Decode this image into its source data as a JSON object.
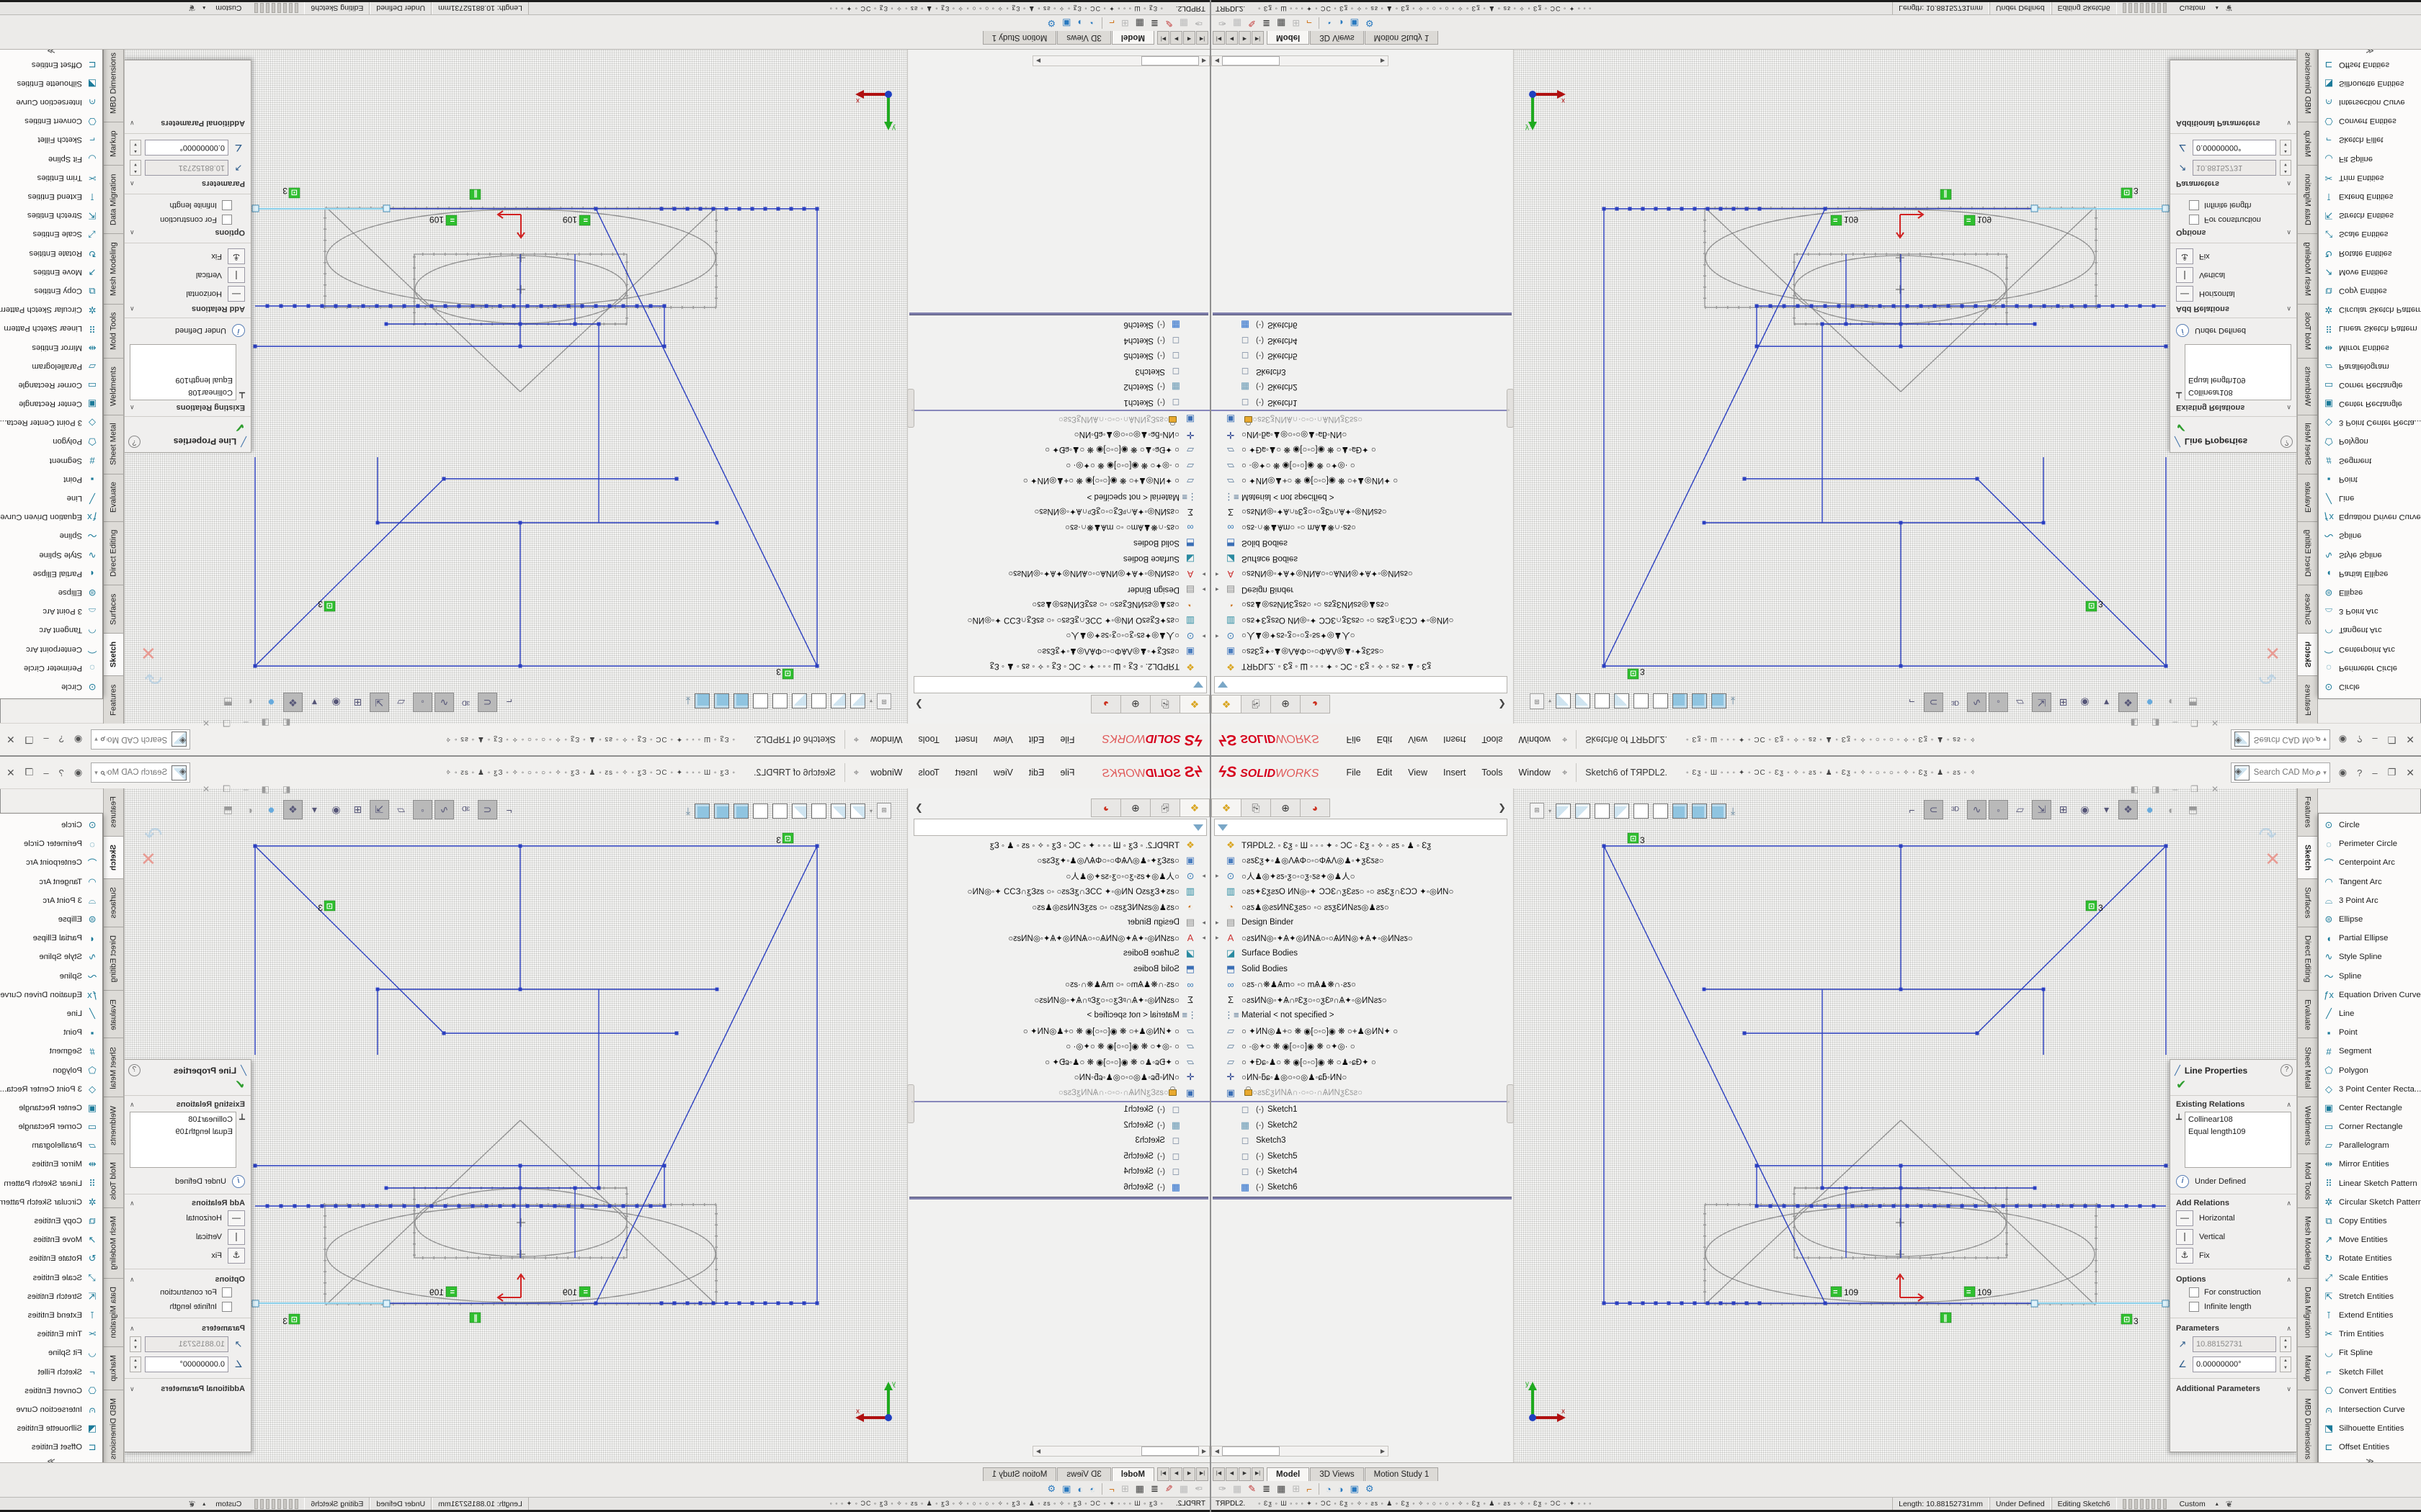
{
  "window": {
    "logo_ds": "ϟS",
    "logo_solid": "SOLID",
    "logo_works": "WORKS",
    "menus": [
      "File",
      "Edit",
      "View",
      "Insert",
      "Tools",
      "Window"
    ],
    "pin_icon": "⌖",
    "doc_title": "Sketch6 of TЯPDL2.",
    "qat_glyphs": "◦ Ɛƺ ◦ Ш ◦ ◦ ◦ ✦ ◦ ƆC ◦ Ɛƺ ◦ ✧ ◦ ƨƽ ◦ ♟ ◦ Ɛƺ ◦ ✧ ◦ ○ ◦ ○ ◦ ✧ ◦ Ɛƺ ◦ ♟ ◦ ƨƽ ◦ ✧ ◦ Ɛƺ ◦ ƆC ◦ ✦ ◦ ◦ ◦ …",
    "search_placeholder": "Search CAD Models",
    "search_cube_icon": "◈",
    "search_mag_icon": "⌕",
    "account_icon": "◉",
    "help_label": "?",
    "minimize_label": "–",
    "restore_label": "❐",
    "close_label": "✕"
  },
  "feature_manager": {
    "tabs": [
      {
        "name": "featuremanager-tab",
        "glyph": "❖",
        "color": "#d9a520"
      },
      {
        "name": "propertymanager-tab",
        "glyph": "⎘",
        "color": "#555555"
      },
      {
        "name": "configurationmanager-tab",
        "glyph": "⊕",
        "color": "#333333"
      },
      {
        "name": "displaymanager-tab",
        "glyph": "◕",
        "color": "#cc3322"
      }
    ],
    "chevron": "❯",
    "items": [
      {
        "icon": "part-icon",
        "glyph": "❖",
        "color": "#d9a520",
        "label": "TЯPDL2.",
        "suffix": "  ◦ Ɛƺ ◦ Ш ◦ ◦ ◦ ✦ ◦ ƆC ◦ Ɛƺ ◦ ✧ ◦ ƨƽ ◦ ♟ ◦ Ɛƺ"
      },
      {
        "icon": "history-folder-icon",
        "glyph": "▣",
        "color": "#4a7dbf",
        "label": "○ƨƽƐƺ✦◦♟◎ΛѦΦ○◦○ΦѦΛ◎♟◦✦ƺƐƽƨ○"
      },
      {
        "icon": "sensors-icon",
        "glyph": "⊙",
        "color": "#3a7ab5",
        "arrow": true,
        "label": "○人♟◎✦ƨƽ◦ƺ○◦○ƺ◦ƽƨ✦◎♟人○"
      },
      {
        "icon": "chart-icon",
        "glyph": "▥",
        "color": "#2a8aa0",
        "label": "○ƨƽ✦ƐƺƨƽΟ ИΝ◎◦✦ ƆƆƐ∩ƺƐƨƽ○ ◦○ ƨƽƐƺ∩ƐƆƆ ✦◦◎ИΝ○"
      },
      {
        "icon": "gauge-icon",
        "glyph": "◔",
        "color": "#cc7722",
        "label": "○ƨƽ♟◎ƨƽИΝƐƺƨƽ○ ◦○ ƨƽƺƐИΝƨƽ◎♟ƨƽ○"
      },
      {
        "icon": "design-binder-icon",
        "glyph": "▤",
        "color": "#8a8a8a",
        "arrow": true,
        "label": "Design Binder"
      },
      {
        "icon": "annotations-icon",
        "glyph": "A",
        "color": "#cc3333",
        "arrow": true,
        "label": "○ƨƽИΝ◎◦✦Ѧ✦◎ИΝѦ○◦○ѦИΝ◎✦Ѧ✦◦◎ИΝƨƽ○"
      },
      {
        "icon": "surface-bodies-icon",
        "glyph": "◪",
        "color": "#2a8aa0",
        "label": "Surface Bodies"
      },
      {
        "icon": "solid-bodies-icon",
        "glyph": "⬒",
        "color": "#3a6eb5",
        "label": "Solid Bodies"
      },
      {
        "icon": "lights-icon",
        "glyph": "∞",
        "color": "#3a7ab5",
        "label": "○ƨƽ·∩❋♟Ѧm○ ◦○ mѦ♟❋∩·ƨƽ○"
      },
      {
        "icon": "equations-icon",
        "glyph": "Σ",
        "color": "#222222",
        "label": "○ƨƽИΝ◎◦✦Ѧ∩ᵖƐƺ○◦○ƺƐᵖ∩Ѧ✦◦◎ИΝƨƽ○"
      },
      {
        "icon": "material-icon",
        "glyph": "⋮≡",
        "color": "#4a6a8a",
        "label": "Material  < not specified >"
      },
      {
        "icon": "plane-icon",
        "glyph": "▱",
        "color": "#5a7a9a",
        "label": "○ ✦ИΝ◎♟+○ ❋ ◉[○◦○]◉ ❋ ○+♟◎ИΝ✦ ○"
      },
      {
        "icon": "plane-icon",
        "glyph": "▱",
        "color": "#5a7a9a",
        "label": "○ ·◎✦○ ❋ ◉[○◦○]◉ ❋ ○✦◎· ○"
      },
      {
        "icon": "plane-icon",
        "glyph": "▱",
        "color": "#5a7a9a",
        "label": "○ ✦Ɖɕ◦♟○ ❋ ◉[○◦○]◉ ❋ ○♟◦ɕƉ✦ ○"
      },
      {
        "icon": "origin-icon",
        "glyph": "✛",
        "color": "#223a8a",
        "label": "○ИΝ◦ƃɕ◦♟◎○◦○◎♟◦ɕƃ◦ИΝ○"
      },
      {
        "icon": "locked-folder-icon",
        "glyph": "▣",
        "color": "#3a6eb5",
        "lock": true,
        "muted": true,
        "label": "○ƨƽƐƺИΝѦ∩·○◦○·∩ѦИΝƺƐƽƨ○"
      },
      {
        "icon": "sketch-icon",
        "glyph": "◻",
        "color": "#7a8aa0",
        "sub": true,
        "prefix": "(-)",
        "label": "Sketch1",
        "divided": true
      },
      {
        "icon": "sketch-icon",
        "glyph": "▦",
        "color": "#6a9ab5",
        "sub": true,
        "prefix": "(-)",
        "label": "Sketch2"
      },
      {
        "icon": "sketch-icon",
        "glyph": "◻",
        "color": "#7a8aa0",
        "sub": true,
        "prefix": "",
        "label": "Sketch3"
      },
      {
        "icon": "sketch-icon",
        "glyph": "◻",
        "color": "#7a8aa0",
        "sub": true,
        "prefix": "(-)",
        "label": "Sketch5"
      },
      {
        "icon": "sketch-icon",
        "glyph": "◻",
        "color": "#7a8aa0",
        "sub": true,
        "prefix": "(-)",
        "label": "Sketch4"
      },
      {
        "icon": "sketch-active-icon",
        "glyph": "▦",
        "color": "#2a6ecc",
        "sub": true,
        "prefix": "(-)",
        "label": "Sketch6"
      }
    ]
  },
  "viewport": {
    "view_toolbar_doc_icon": "⊞",
    "dims": [
      "109",
      "109"
    ],
    "tag_equal": "=",
    "tag_parallel": "∥",
    "tag_three": "3",
    "axis_x": "x",
    "axis_y": "y",
    "confirm_sketch_icon": "↷",
    "confirm_check": "✓",
    "confirm_close": "✕",
    "hud_icons": [
      {
        "name": "hide-sketch-icon",
        "glyph": "⌐",
        "pressed": false
      },
      {
        "name": "show-contour-icon",
        "glyph": "⊂",
        "pressed": true
      },
      {
        "name": "view-3d-icon",
        "glyph": "³ᴰ",
        "pressed": false
      },
      {
        "name": "show-spline-icon",
        "glyph": "∿",
        "pressed": true
      },
      {
        "name": "show-points-icon",
        "glyph": "◦",
        "pressed": true
      },
      {
        "name": "show-planes-icon",
        "glyph": "▱",
        "pressed": false
      },
      {
        "name": "show-arrows-icon",
        "glyph": "⇲",
        "pressed": true
      },
      {
        "name": "grid-icon",
        "glyph": "⊞",
        "pressed": false
      },
      {
        "name": "eye-icon",
        "glyph": "◉",
        "pressed": false
      },
      {
        "name": "dropdown-icon",
        "glyph": "▾",
        "pressed": false
      },
      {
        "name": "shaded-view-icon",
        "glyph": "❖",
        "pressed": true
      },
      {
        "name": "sphere-view-icon",
        "glyph": "●",
        "pressed": false,
        "cls": "sphere"
      },
      {
        "name": "eyeball-icon",
        "glyph": "◐",
        "pressed": false,
        "cls": "dim"
      },
      {
        "name": "cube-view-icon",
        "glyph": "⬒",
        "pressed": false,
        "cls": "dim"
      }
    ]
  },
  "property_panel": {
    "title": "Line Properties",
    "line_icon": "╱",
    "help_icon": "?",
    "check_icon": "✔",
    "sections": {
      "existing": "Existing Relations",
      "add": "Add Relations",
      "options": "Options",
      "parameters": "Parameters",
      "additional": "Additional Parameters"
    },
    "collinear_icon": "⟂",
    "relations": [
      "Collinear108",
      "Equal length109"
    ],
    "status": "Under Defined",
    "add_relations": [
      {
        "glyph": "—",
        "label": "Horizontal"
      },
      {
        "glyph": "❘",
        "label": "Vertical"
      },
      {
        "glyph": "⚓",
        "label": "Fix"
      }
    ],
    "options": [
      "For construction",
      "Infinite length"
    ],
    "parameters": [
      {
        "glyph": "↗",
        "value": "10.88152731",
        "disabled": true
      },
      {
        "glyph": "∠",
        "value": "0.00000000°",
        "disabled": false
      }
    ]
  },
  "command_tabs": [
    {
      "label": "Features",
      "active": false
    },
    {
      "label": "Sketch",
      "active": true
    },
    {
      "label": "Surfaces",
      "active": false
    },
    {
      "label": "Direct Editing",
      "active": false
    },
    {
      "label": "Evaluate",
      "active": false
    },
    {
      "label": "Sheet Metal",
      "active": false
    },
    {
      "label": "Weldments",
      "active": false
    },
    {
      "label": "Mold Tools",
      "active": false
    },
    {
      "label": "Mesh Modeling",
      "active": false
    },
    {
      "label": "Data Migration",
      "active": false
    },
    {
      "label": "Markup",
      "active": false
    },
    {
      "label": "MBD Dimensions",
      "active": false
    },
    {
      "label": "⋮",
      "active": false,
      "dots": true
    },
    {
      "label": "⋮",
      "active": false,
      "dots": true
    }
  ],
  "sketch_menu": {
    "items": [
      {
        "glyph": "⊙",
        "label": "Circle"
      },
      {
        "glyph": "◌",
        "label": "Perimeter Circle"
      },
      {
        "glyph": "⌒",
        "label": "Centerpoint Arc"
      },
      {
        "glyph": "◠",
        "label": "Tangent Arc"
      },
      {
        "glyph": "⌓",
        "label": "3 Point Arc"
      },
      {
        "glyph": "⊜",
        "label": "Ellipse"
      },
      {
        "glyph": "◖",
        "label": "Partial Ellipse"
      },
      {
        "glyph": "∿",
        "label": "Style Spline"
      },
      {
        "glyph": "〜",
        "label": "Spline"
      },
      {
        "glyph": "ƒx",
        "label": "Equation Driven Curve"
      },
      {
        "glyph": "╱",
        "label": "Line"
      },
      {
        "glyph": "▪",
        "label": "Point"
      },
      {
        "glyph": "#",
        "label": "Segment"
      },
      {
        "glyph": "⬠",
        "label": "Polygon"
      },
      {
        "glyph": "◇",
        "label": "3 Point Center Recta..."
      },
      {
        "glyph": "▣",
        "label": "Center Rectangle"
      },
      {
        "glyph": "▭",
        "label": "Corner Rectangle"
      },
      {
        "glyph": "▱",
        "label": "Parallelogram"
      },
      {
        "glyph": "⇹",
        "label": "Mirror Entities"
      },
      {
        "glyph": "⠿",
        "label": "Linear Sketch Pattern"
      },
      {
        "glyph": "✲",
        "label": "Circular Sketch Pattern"
      },
      {
        "glyph": "⧉",
        "label": "Copy Entities"
      },
      {
        "glyph": "↗",
        "label": "Move Entities"
      },
      {
        "glyph": "↻",
        "label": "Rotate Entities"
      },
      {
        "glyph": "⤢",
        "label": "Scale Entities"
      },
      {
        "glyph": "⇱",
        "label": "Stretch Entities"
      },
      {
        "glyph": "⊺",
        "label": "Extend Entities"
      },
      {
        "glyph": "✂",
        "label": "Trim Entities"
      },
      {
        "glyph": "◡",
        "label": "Fit Spline"
      },
      {
        "glyph": "⌐",
        "label": "Sketch Fillet"
      },
      {
        "glyph": "⎔",
        "label": "Convert Entities"
      },
      {
        "glyph": "⩀",
        "label": "Intersection Curve"
      },
      {
        "glyph": "⬔",
        "label": "Silhouette Entities"
      },
      {
        "glyph": "⊏",
        "label": "Offset Entities"
      }
    ],
    "more": "≫"
  },
  "doc_bar": {
    "nav_icons": [
      "|◀",
      "◀",
      "▶",
      "▶|"
    ],
    "tabs": [
      {
        "label": "Model",
        "active": true
      },
      {
        "label": "3D Views",
        "active": false
      },
      {
        "label": "Motion Study 1",
        "active": false
      }
    ],
    "tool_icons": [
      {
        "name": "filter-icon",
        "glyph": "✑",
        "color": "#a8a8a8"
      },
      {
        "name": "layers-icon",
        "glyph": "▦",
        "color": "#bcbcbc"
      },
      {
        "name": "appearance-icon",
        "glyph": "✎",
        "color": "#c03030"
      },
      {
        "name": "linestyle-icon",
        "glyph": "≣",
        "color": "#222222"
      },
      {
        "name": "table-icon",
        "glyph": "▦",
        "color": "#444444"
      },
      {
        "name": "grid-filter-icon",
        "glyph": "⊞",
        "color": "#b8b8b8"
      },
      {
        "name": "origin-tool-icon",
        "glyph": "⌐",
        "color": "#cc6600"
      },
      {
        "name": "sep",
        "glyph": "",
        "color": ""
      },
      {
        "name": "clock1-icon",
        "glyph": "◔",
        "color": "#2a7ac0"
      },
      {
        "name": "clock2-icon",
        "glyph": "◑",
        "color": "#2a7ac0"
      },
      {
        "name": "folder-clock-icon",
        "glyph": "▣",
        "color": "#2a7ac0"
      },
      {
        "name": "gear-icon",
        "glyph": "⚙",
        "color": "#2a7ac0"
      }
    ]
  },
  "status_bar": {
    "doc": "TЯPDL2.",
    "glyphs": "◦ Ɛƺ ◦ Ш ◦ ◦ ◦ ✦ ◦ ƆC ◦ Ɛƺ ◦ ✧ ◦ ƨƽ ◦ ♟ ◦ Ɛƺ ◦ ✧ ◦   ○   ◦   ○   ◦ ✧ ◦ Ɛƺ ◦ ♟ ◦ ƨƽ ◦ ✧ ◦ Ɛƺ ◦ ƆC ◦ ✦ ◦ ◦ ◦",
    "length": "Length: 10.88152731mm",
    "state": "Under Defined",
    "editing": "Editing Sketch6",
    "custom": "Custom",
    "custom_arrow": "▴",
    "owl_icon": "❦"
  },
  "colors": {
    "sketch_blue": "#2b3fc0",
    "sketch_gray": "#8f8f8f",
    "selected_cyan": "#8fd2ec",
    "relation_green": "#2fbf2f",
    "origin_red": "#d02020",
    "logo_red": "#d6001c",
    "menu_icon_teal": "#1b7a99"
  }
}
